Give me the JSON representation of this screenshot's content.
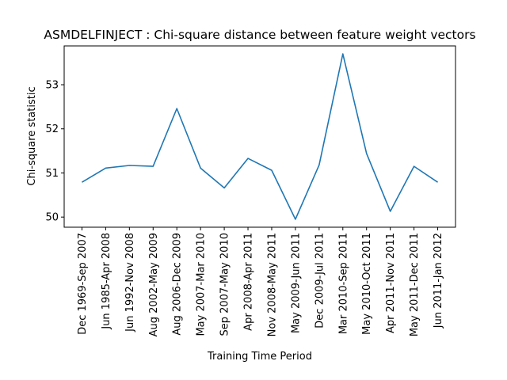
{
  "chart_data": {
    "type": "line",
    "title": "ASMDELFINJECT : Chi-square distance between feature weight vectors",
    "x_label": "Training Time Period",
    "y_label": "Chi-square statistic",
    "categories": [
      "Dec 1969-Sep 2007",
      "Jun 1985-Apr 2008",
      "Jun 1992-Nov 2008",
      "Aug 2002-May 2009",
      "Aug 2006-Dec 2009",
      "May 2007-Mar 2010",
      "Sep 2007-May 2010",
      "Apr 2008-Apr 2011",
      "Nov 2008-May 2011",
      "May 2009-Jun 2011",
      "Dec 2009-Jul 2011",
      "Mar 2010-Sep 2011",
      "May 2010-Oct 2011",
      "Apr 2011-Nov 2011",
      "May 2011-Dec 2011",
      "Jun 2011-Jan 2012"
    ],
    "values": [
      50.79,
      51.11,
      51.17,
      51.15,
      52.46,
      51.11,
      50.66,
      51.33,
      51.06,
      49.95,
      51.18,
      53.7,
      51.44,
      50.13,
      51.15,
      50.79
    ],
    "color": "#1f77b4",
    "ylim": [
      49.77,
      53.88
    ],
    "yticks": [
      50,
      51,
      52,
      53
    ],
    "grid": false
  }
}
